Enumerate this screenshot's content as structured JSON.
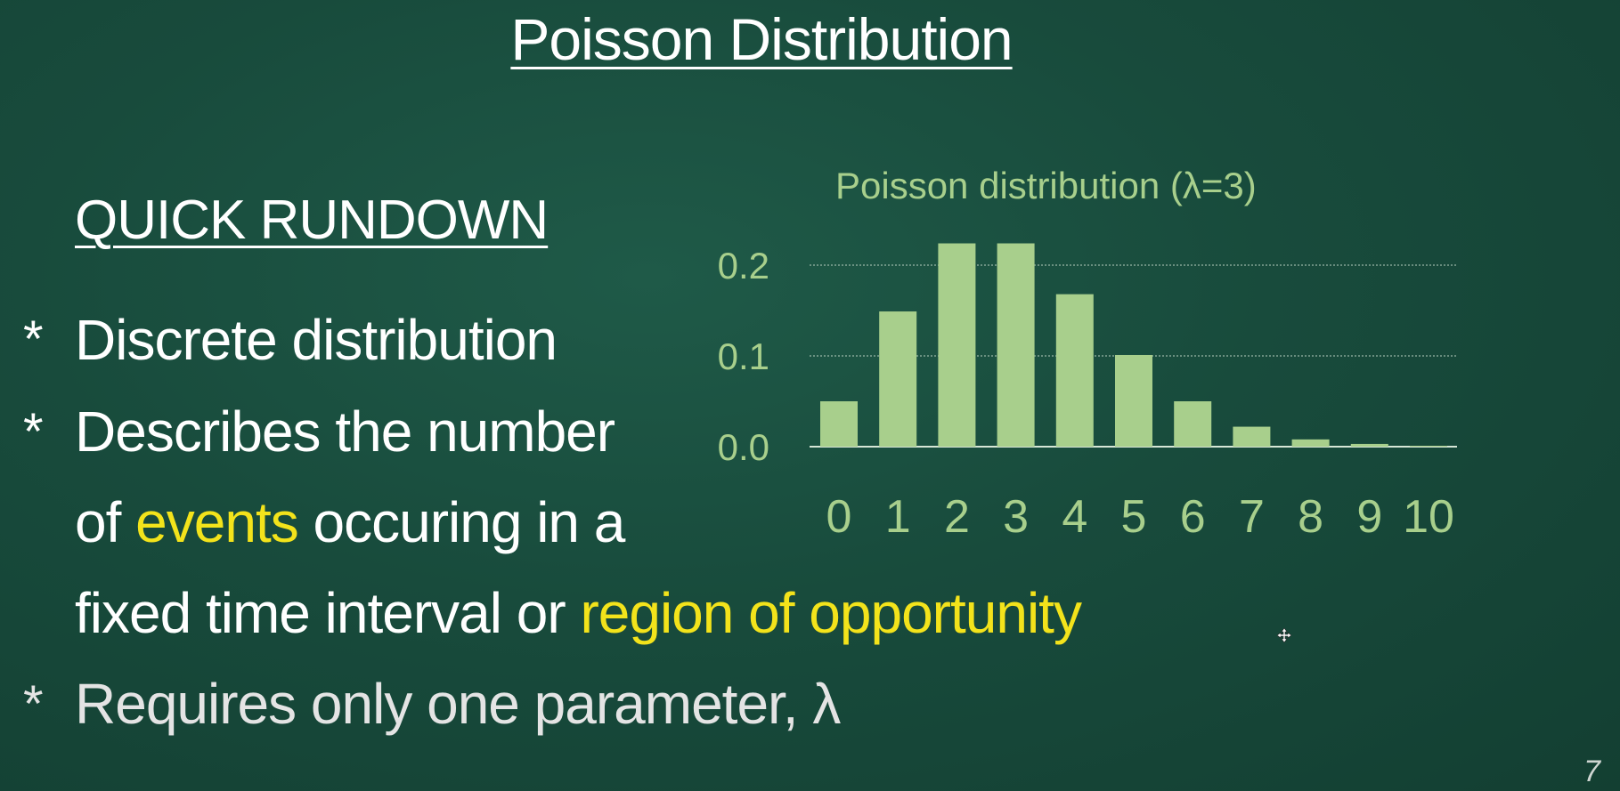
{
  "slide": {
    "title": "Poisson Distribution",
    "section_heading": "QUICK RUNDOWN",
    "bullet_marker": "*",
    "bullets": [
      {
        "text": "Discrete distribution"
      },
      {
        "line1": "Describes the number",
        "line2_a": "of ",
        "line2_b": "events",
        "line2_c": " occuring in a",
        "line3_a": "fixed time interval or ",
        "line3_b": "region of opportunity"
      },
      {
        "text": "Requires only one parameter, λ"
      }
    ],
    "page_number": "7",
    "highlight_color": "#f3e31b"
  },
  "chart_data": {
    "type": "bar",
    "title": "Poisson distribution (λ=3)",
    "categories": [
      "0",
      "1",
      "2",
      "3",
      "4",
      "5",
      "6",
      "7",
      "8",
      "9",
      "10"
    ],
    "values": [
      0.05,
      0.149,
      0.224,
      0.224,
      0.168,
      0.101,
      0.05,
      0.022,
      0.008,
      0.003,
      0.001
    ],
    "yticks": [
      "0.0",
      "0.1",
      "0.2"
    ],
    "ylim": [
      0,
      0.2
    ],
    "grid": true,
    "bar_color": "#a8cf8c",
    "xlabel": "",
    "ylabel": ""
  }
}
